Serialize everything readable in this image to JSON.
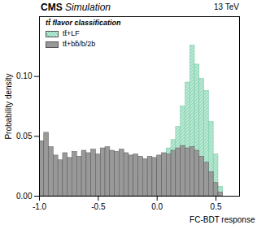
{
  "chart_data": {
    "type": "histogram",
    "title": "CMS",
    "subtitle": "Simulation",
    "annotations": [
      "13 TeV"
    ],
    "legend_title": "tt̄ flavor classification",
    "legend": "top-left",
    "x_label": "FC-BDT response",
    "y_label": "Probability density",
    "xlim": [
      -1,
      0.7
    ],
    "ylim": [
      0,
      0.15
    ],
    "xticks": [
      {
        "value": -1,
        "label": "-1.0"
      },
      {
        "value": -0.5,
        "label": "-0.5"
      },
      {
        "value": 0,
        "label": "0.0"
      },
      {
        "value": 0.5,
        "label": "0.5"
      }
    ],
    "yticks": [
      {
        "value": 0,
        "label": "0.00"
      },
      {
        "value": 0.05,
        "label": "0.05"
      },
      {
        "value": 0.1,
        "label": "0.10"
      }
    ],
    "bins": [
      -1,
      -0.96,
      -0.92,
      -0.88,
      -0.84,
      -0.8,
      -0.76,
      -0.72,
      -0.68,
      -0.64,
      -0.6,
      -0.56,
      -0.52,
      -0.48,
      -0.44,
      -0.4,
      -0.36,
      -0.32,
      -0.28,
      -0.24,
      -0.2,
      -0.16,
      -0.12,
      -0.08,
      -0.04,
      0,
      0.04,
      0.08,
      0.12,
      0.16,
      0.2,
      0.24,
      0.28,
      0.32,
      0.36,
      0.4,
      0.44,
      0.48,
      0.52,
      0.56,
      0.6
    ],
    "series": [
      {
        "name": "tt̄+LF",
        "color": "#b9e8d2",
        "values": [
          0,
          0,
          0,
          0,
          0,
          0,
          0,
          0,
          0,
          0,
          0,
          0,
          0,
          0.001,
          0.001,
          0.002,
          0.003,
          0.004,
          0.006,
          0.008,
          0.01,
          0.013,
          0.016,
          0.019,
          0.023,
          0.028,
          0.034,
          0.04,
          0.047,
          0.058,
          0.075,
          0.095,
          0.126,
          0.11,
          0.098,
          0.088,
          0.062,
          0.035,
          0.008,
          0
        ]
      },
      {
        "name": "tt̄+bb̄/b/2b",
        "color": "#999999",
        "values": [
          0.046,
          0.053,
          0.041,
          0.034,
          0.03,
          0.036,
          0.032,
          0.037,
          0.033,
          0.038,
          0.036,
          0.039,
          0.035,
          0.04,
          0.041,
          0.038,
          0.037,
          0.039,
          0.036,
          0.034,
          0.035,
          0.033,
          0.031,
          0.033,
          0.032,
          0.034,
          0.036,
          0.035,
          0.038,
          0.04,
          0.042,
          0.04,
          0.041,
          0.038,
          0.033,
          0.028,
          0.02,
          0.011,
          0.003,
          0
        ]
      }
    ]
  }
}
